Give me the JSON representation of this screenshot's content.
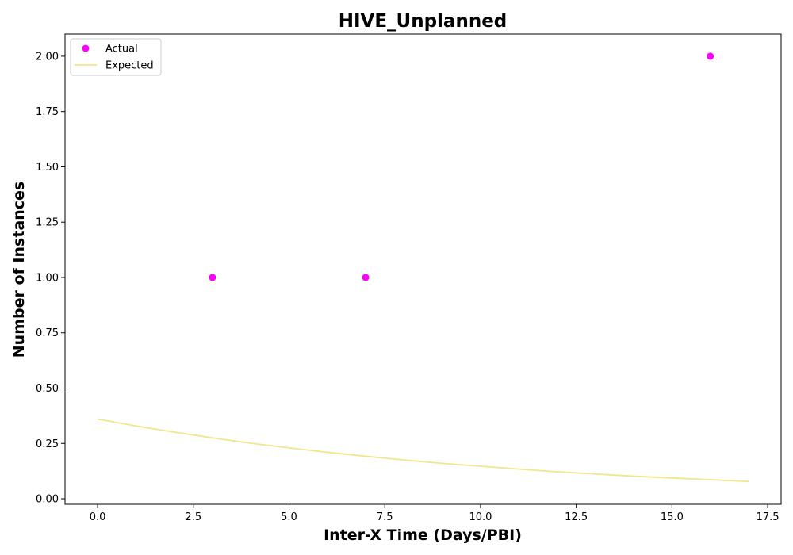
{
  "chart_data": {
    "type": "scatter",
    "title": "HIVE_Unplanned",
    "xlabel": "Inter-X Time (Days/PBI)",
    "ylabel": "Number of Instances",
    "xlim": [
      -0.85,
      17.85
    ],
    "ylim": [
      -0.025,
      2.1
    ],
    "xticks": [
      0.0,
      2.5,
      5.0,
      7.5,
      10.0,
      12.5,
      15.0,
      17.5
    ],
    "xtick_labels": [
      "0.0",
      "2.5",
      "5.0",
      "7.5",
      "10.0",
      "12.5",
      "15.0",
      "17.5"
    ],
    "yticks": [
      0.0,
      0.25,
      0.5,
      0.75,
      1.0,
      1.25,
      1.5,
      1.75,
      2.0
    ],
    "ytick_labels": [
      "0.00",
      "0.25",
      "0.50",
      "0.75",
      "1.00",
      "1.25",
      "1.50",
      "1.75",
      "2.00"
    ],
    "grid": false,
    "legend_position": "top-left",
    "series": [
      {
        "name": "Actual",
        "kind": "scatter",
        "color": "#ff00ff",
        "x": [
          3,
          7,
          16
        ],
        "y": [
          1,
          1,
          2
        ]
      },
      {
        "name": "Expected",
        "kind": "line",
        "color": "#f0e68c",
        "x": [
          0,
          1,
          2,
          3,
          4,
          5,
          6,
          7,
          8,
          9,
          10,
          11,
          12,
          13,
          14,
          15,
          16,
          17
        ],
        "y": [
          0.36,
          0.329,
          0.301,
          0.275,
          0.251,
          0.23,
          0.21,
          0.192,
          0.175,
          0.16,
          0.147,
          0.134,
          0.122,
          0.112,
          0.102,
          0.094,
          0.086,
          0.078
        ]
      }
    ]
  }
}
